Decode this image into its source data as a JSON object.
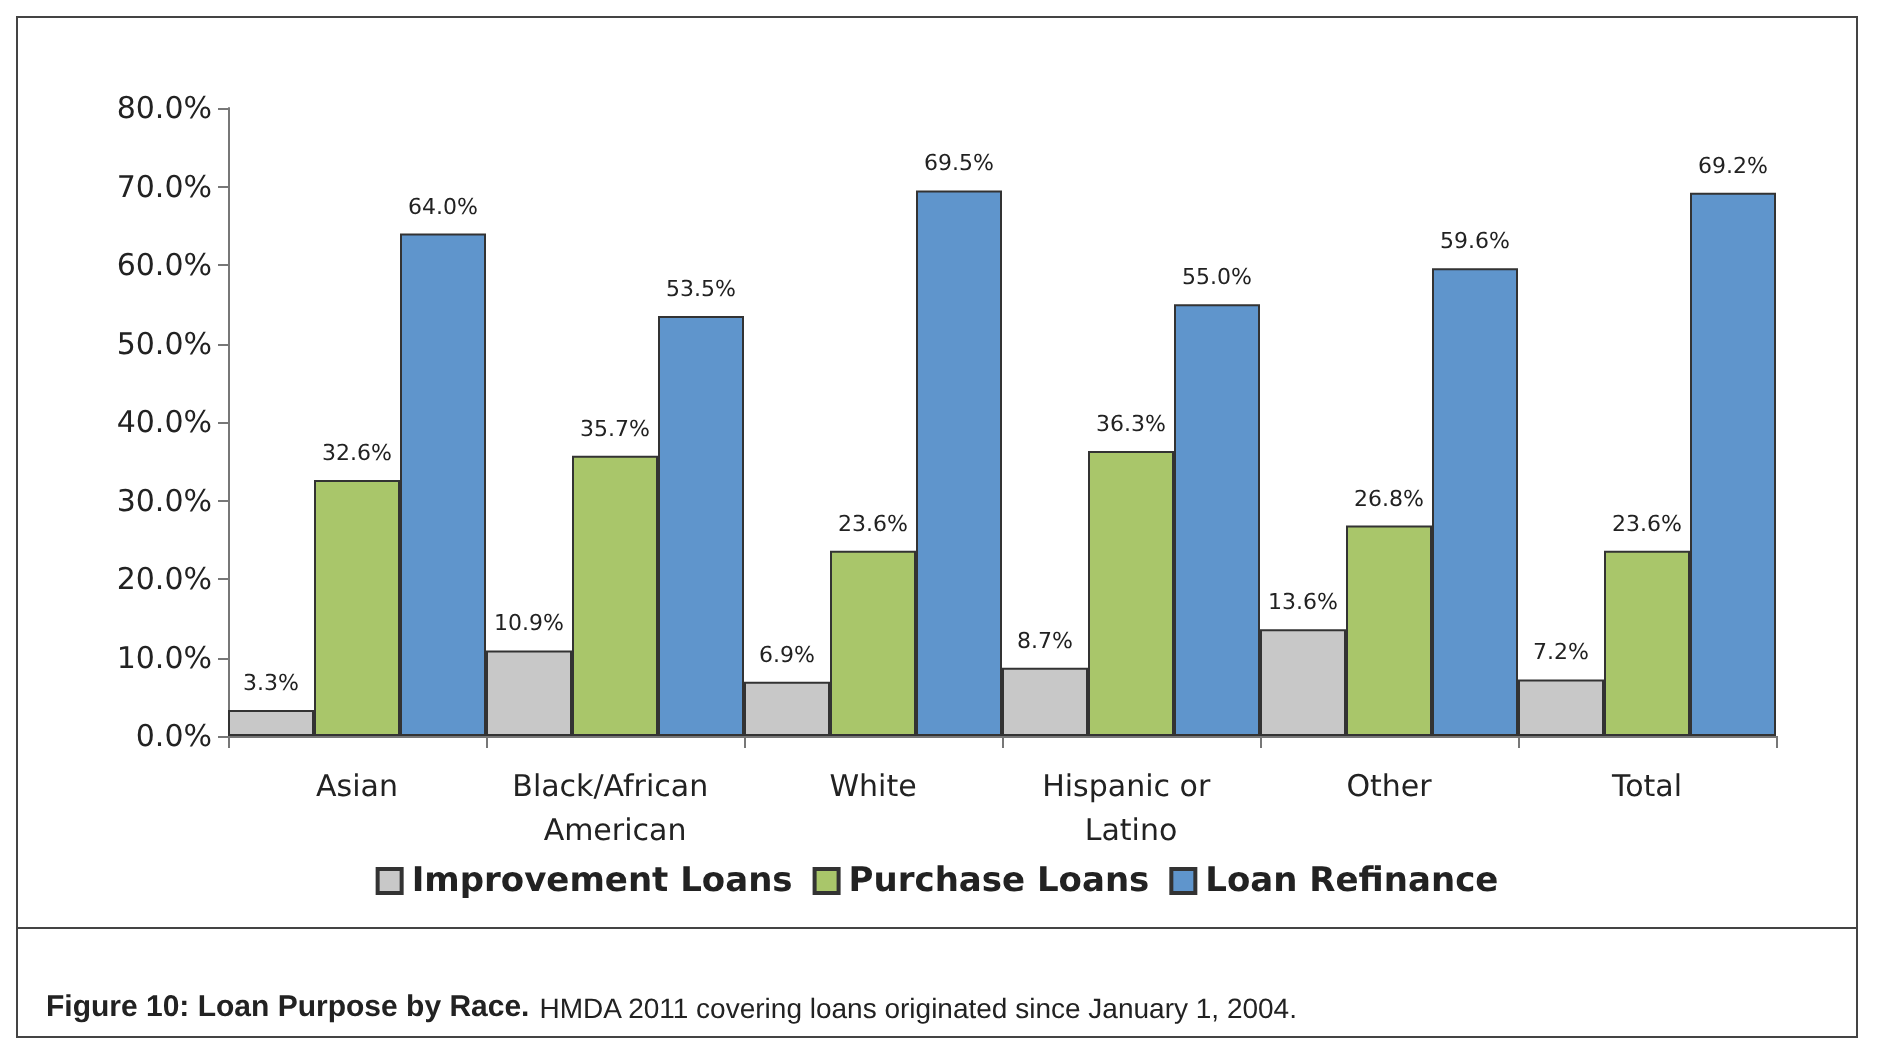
{
  "chart_data": {
    "type": "bar",
    "title": "Figure 10: Loan Purpose by Race.",
    "annotations": [
      "HMDA 2011 covering loans originated since January 1, 2004."
    ],
    "categories": [
      "Asian",
      "Black/African American",
      "White",
      "Hispanic or Latino",
      "Other",
      "Total"
    ],
    "series": [
      {
        "name": "Improvement Loans",
        "color": "#c8c8c8",
        "values": [
          3.3,
          10.9,
          6.9,
          8.7,
          13.6,
          7.2
        ],
        "value_labels": [
          "3.3%",
          "10.9%",
          "6.9%",
          "8.7%",
          "13.6%",
          "7.2%"
        ]
      },
      {
        "name": "Purchase Loans",
        "color": "#a9c66a",
        "values": [
          32.6,
          35.7,
          23.6,
          36.3,
          26.8,
          23.6
        ],
        "value_labels": [
          "32.6%",
          "35.7%",
          "23.6%",
          "36.3%",
          "26.8%",
          "23.6%"
        ]
      },
      {
        "name": "Loan Refinance",
        "color": "#5f95cc",
        "values": [
          64.0,
          53.5,
          69.5,
          55.0,
          59.6,
          69.2
        ],
        "value_labels": [
          "64.0%",
          "53.5%",
          "69.5%",
          "55.0%",
          "59.6%",
          "69.2%"
        ]
      }
    ],
    "ylim": [
      0,
      80
    ],
    "yticks": [
      {
        "value": 0,
        "label": "0.0%"
      },
      {
        "value": 10,
        "label": "10.0%"
      },
      {
        "value": 20,
        "label": "20.0%"
      },
      {
        "value": 30,
        "label": "30.0%"
      },
      {
        "value": 40,
        "label": "40.0%"
      },
      {
        "value": 50,
        "label": "50.0%"
      },
      {
        "value": 60,
        "label": "60.0%"
      },
      {
        "value": 70,
        "label": "70.0%"
      },
      {
        "value": 80,
        "label": "80.0%"
      }
    ],
    "grid": false,
    "legend": "bottom"
  }
}
